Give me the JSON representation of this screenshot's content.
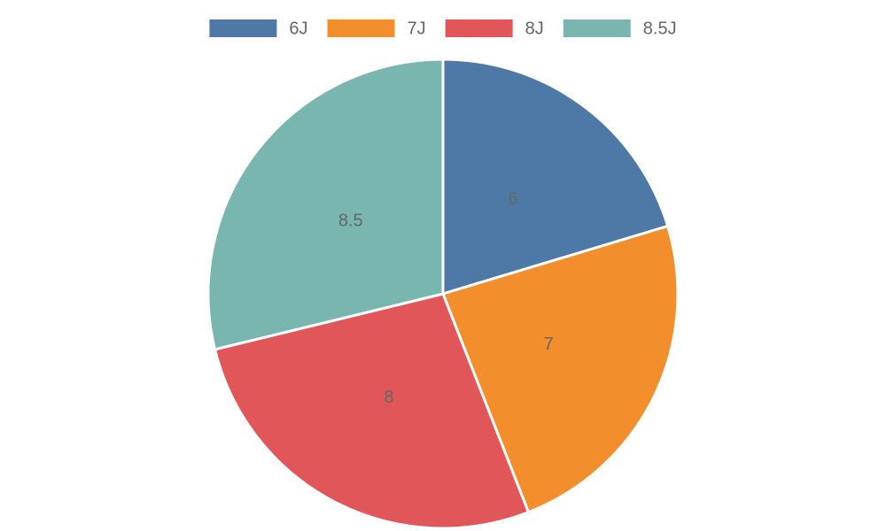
{
  "chart_data": {
    "type": "pie",
    "categories": [
      "6J",
      "7J",
      "8J",
      "8.5J"
    ],
    "values": [
      6,
      7,
      8,
      8.5
    ],
    "colors": [
      "#4e79a7",
      "#f28e2b",
      "#e15759",
      "#79b6af"
    ],
    "legend": "top"
  }
}
